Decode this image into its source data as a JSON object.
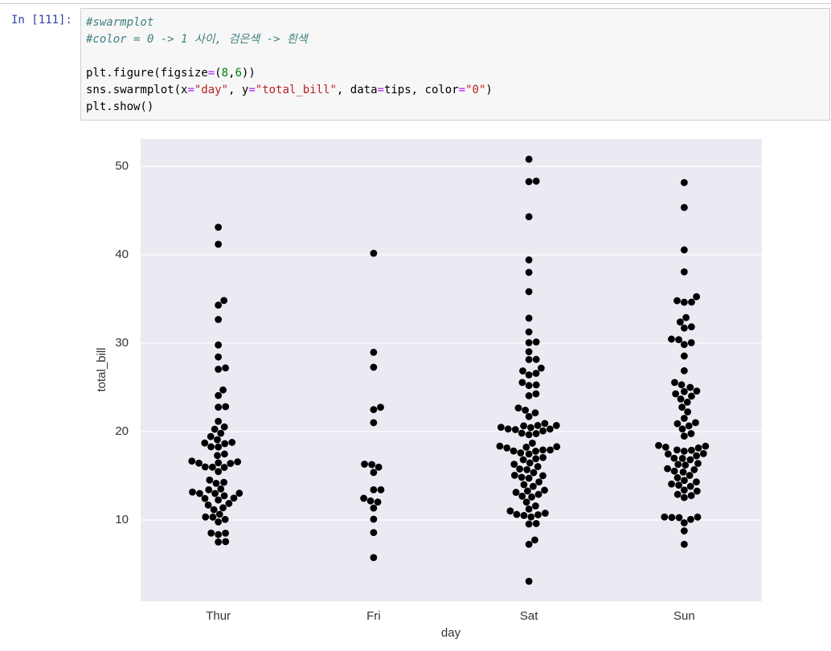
{
  "prompt": "In [111]:",
  "code": {
    "lines": [
      "#swarmplot",
      "#color = 0 -> 1 사이, 검은색 -> 흰색",
      "plt.figure(figsize=(8,6))",
      "sns.swarmplot(x=\"day\", y=\"total_bill\", data=tips, color=\"0\")",
      "plt.show()"
    ]
  },
  "chart_data": {
    "type": "swarm",
    "x_label": "day",
    "y_label": "total_bill",
    "categories": [
      "Thur",
      "Fri",
      "Sat",
      "Sun"
    ],
    "color": "#000000",
    "values": [
      [
        27.2,
        22.76,
        17.29,
        19.44,
        16.66,
        10.07,
        32.68,
        15.98,
        34.83,
        13.03,
        18.28,
        24.71,
        21.16,
        10.65,
        12.43,
        24.08,
        11.69,
        13.42,
        14.26,
        15.95,
        12.48,
        29.8,
        8.52,
        14.52,
        11.38,
        22.82,
        19.08,
        20.27,
        11.17,
        12.26,
        18.26,
        8.51,
        10.33,
        14.15,
        16.0,
        13.16,
        17.47,
        34.3,
        41.19,
        27.05,
        16.43,
        8.35,
        18.64,
        11.87,
        9.78,
        7.51,
        19.81,
        28.44,
        15.48,
        16.58,
        7.56,
        10.34,
        43.11,
        13.0,
        13.51,
        18.71,
        12.74,
        13.0,
        16.4,
        20.53,
        16.47,
        18.78
      ],
      [
        28.97,
        22.49,
        5.75,
        16.32,
        22.75,
        40.17,
        27.28,
        12.03,
        21.01,
        12.46,
        11.35,
        15.38,
        12.16,
        13.42,
        8.58,
        15.98,
        13.42,
        16.27,
        10.09
      ],
      [
        20.65,
        17.92,
        20.29,
        15.77,
        39.42,
        19.82,
        17.81,
        13.37,
        12.69,
        21.7,
        19.65,
        9.55,
        18.35,
        15.06,
        20.69,
        17.78,
        24.06,
        16.31,
        16.93,
        18.69,
        31.27,
        16.04,
        38.01,
        26.41,
        11.24,
        48.27,
        20.29,
        13.81,
        11.02,
        18.29,
        17.59,
        20.08,
        16.45,
        3.07,
        20.23,
        15.01,
        12.02,
        17.07,
        26.86,
        25.28,
        14.73,
        10.51,
        17.92,
        44.3,
        22.42,
        20.92,
        15.36,
        20.49,
        25.21,
        18.24,
        14.31,
        14.0,
        7.25,
        50.81,
        48.33,
        35.83,
        32.83,
        30.06,
        30.14,
        29.03,
        28.15,
        28.17,
        27.18,
        26.59,
        25.56,
        24.27,
        22.67,
        22.12,
        20.45,
        20.69,
        19.77,
        18.15,
        17.47,
        16.82,
        15.69,
        14.83,
        13.28,
        13.13,
        12.9,
        11.59,
        10.77,
        10.63,
        10.59,
        10.34,
        12.6,
        7.74,
        9.6
      ],
      [
        48.17,
        45.35,
        40.55,
        38.07,
        35.26,
        34.81,
        34.65,
        34.63,
        32.9,
        32.4,
        31.85,
        31.71,
        30.4,
        30.46,
        29.85,
        30.06,
        28.55,
        26.88,
        25.56,
        25.29,
        25.0,
        24.59,
        24.52,
        24.01,
        23.68,
        23.33,
        22.23,
        21.5,
        21.01,
        20.9,
        20.65,
        19.77,
        18.43,
        18.35,
        18.15,
        17.92,
        17.78,
        17.51,
        17.46,
        17.26,
        16.99,
        16.97,
        16.82,
        16.4,
        16.29,
        15.81,
        15.69,
        15.42,
        15.04,
        14.78,
        14.07,
        14.48,
        13.94,
        13.39,
        13.81,
        13.27,
        12.9,
        12.54,
        10.29,
        10.33,
        10.27,
        10.34,
        10.07,
        9.68,
        8.77,
        7.25,
        18.24,
        19.49,
        20.29,
        16.21,
        15.53,
        14.31,
        17.89,
        22.76,
        24.27,
        12.76
      ]
    ],
    "ylim": [
      0.82,
      53.09
    ],
    "yticks": [
      10,
      20,
      30,
      40,
      50
    ],
    "grid": true
  }
}
